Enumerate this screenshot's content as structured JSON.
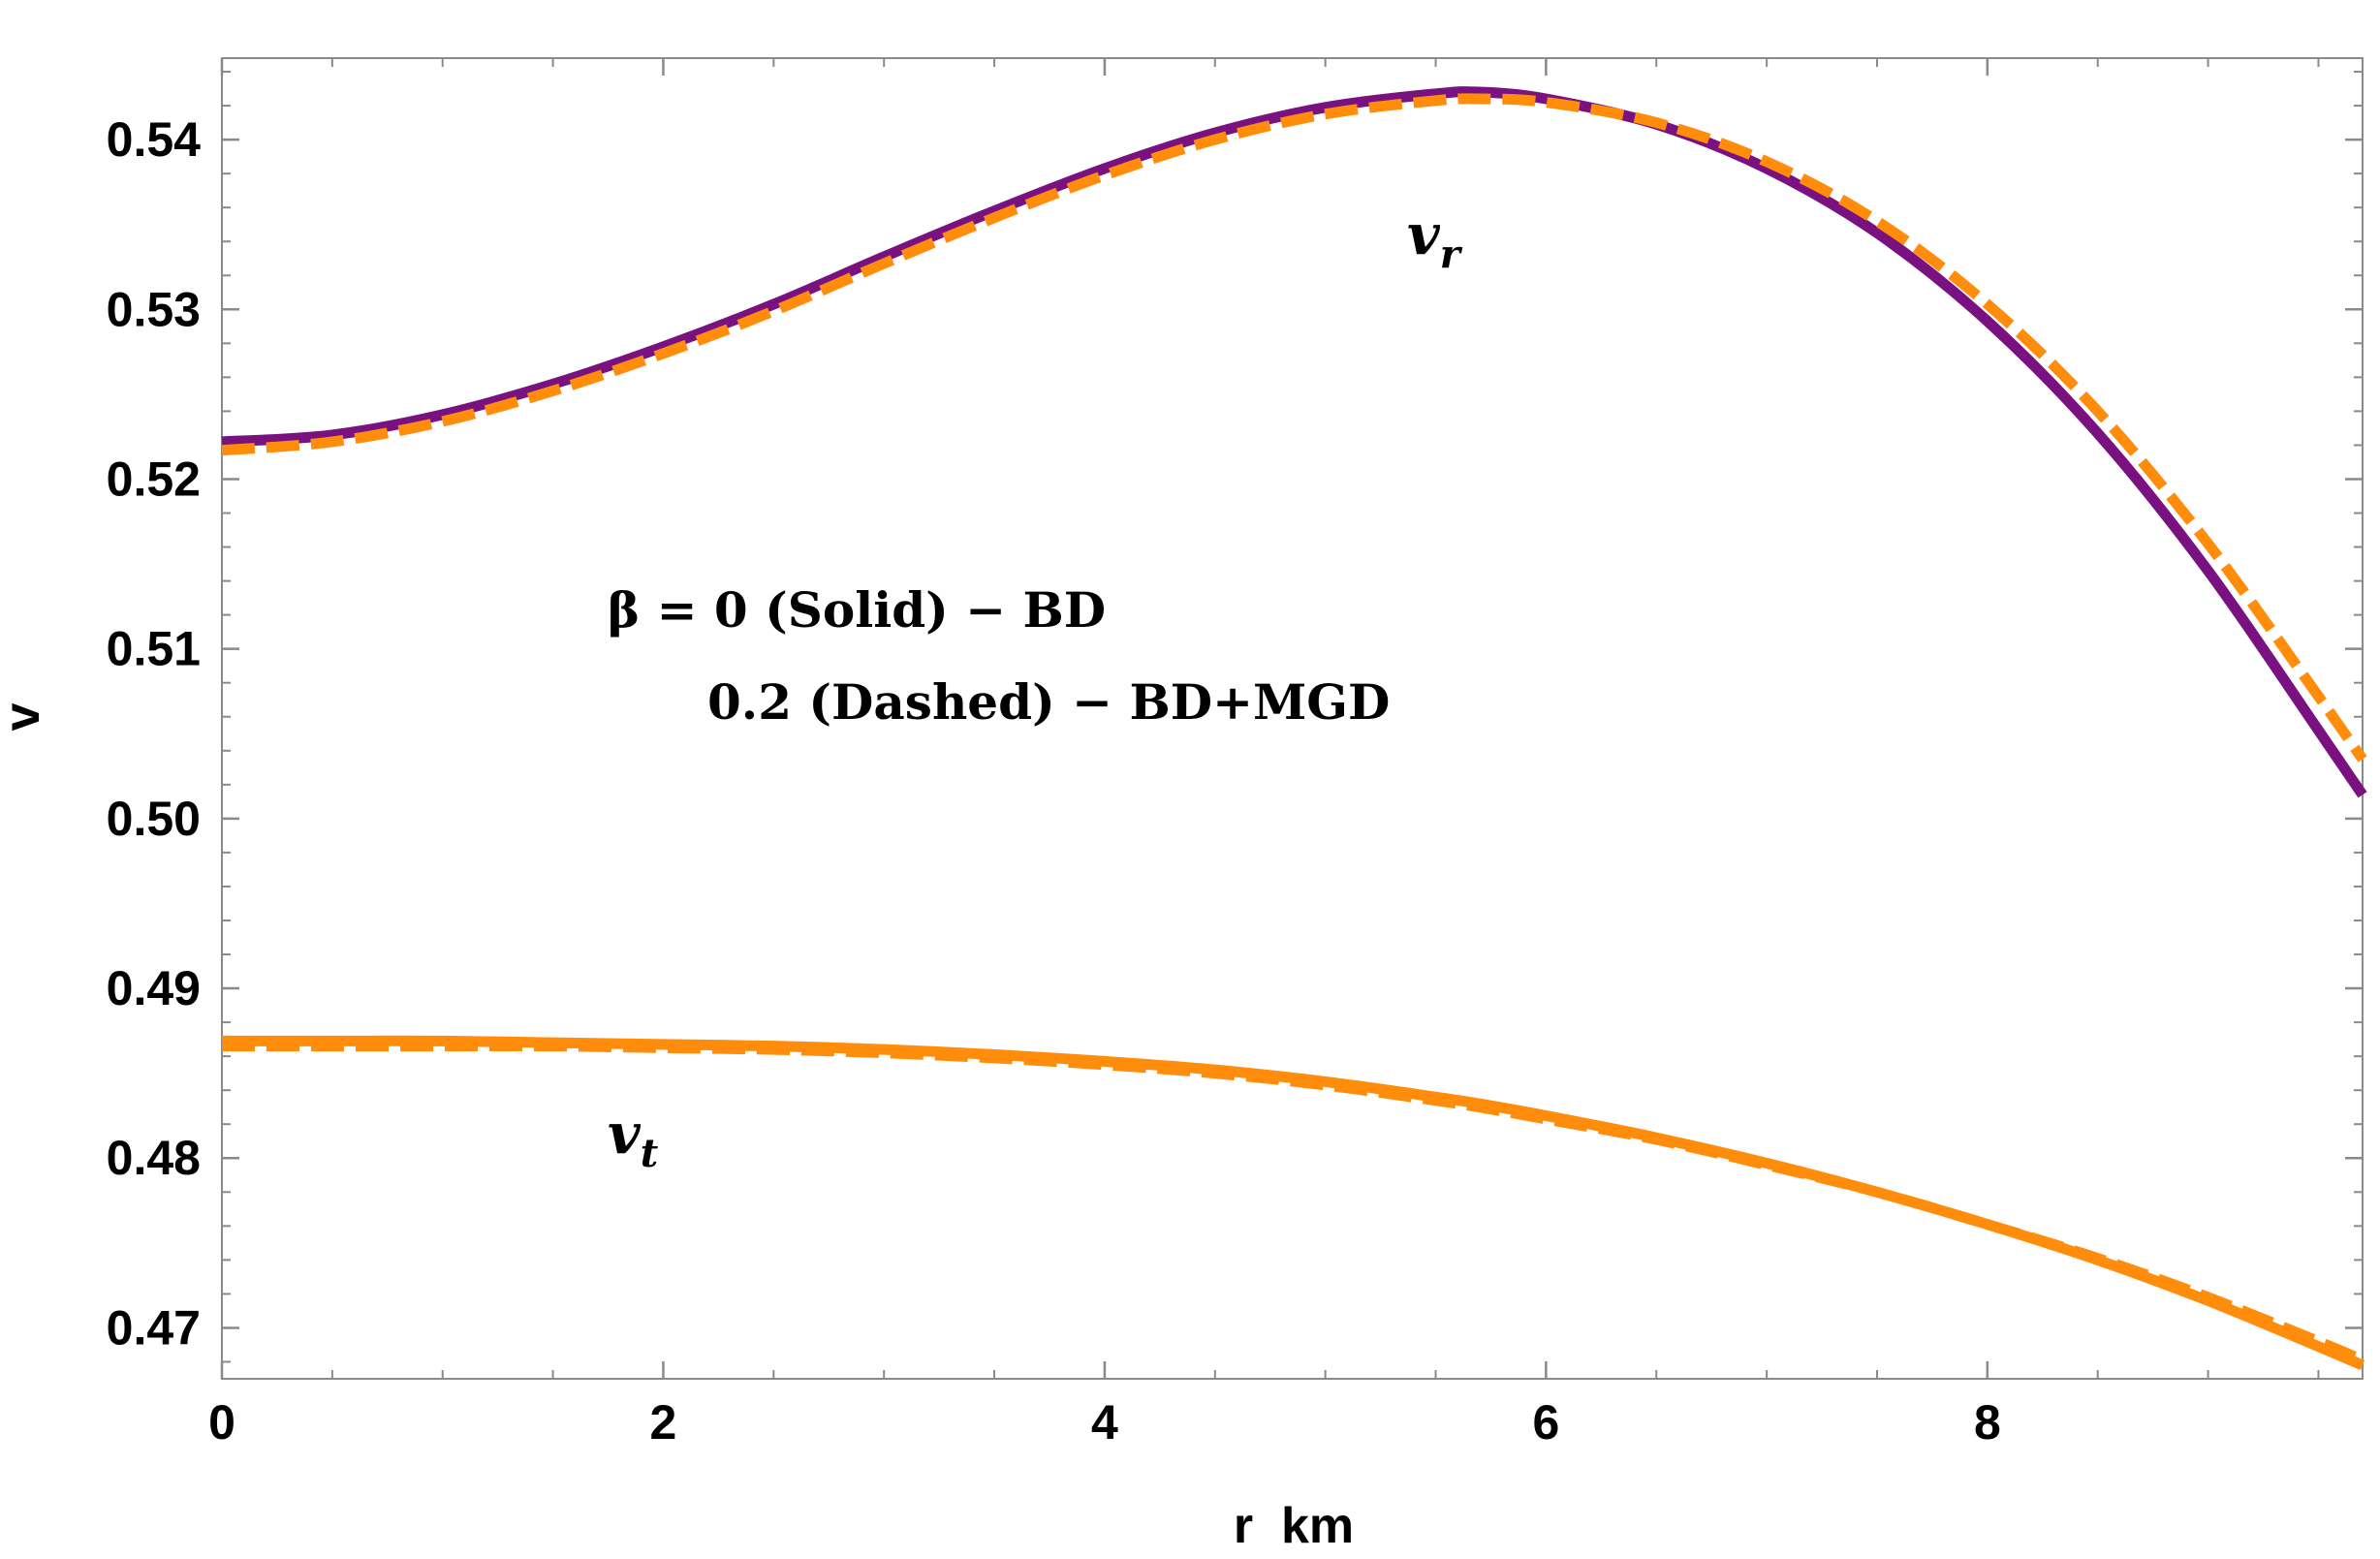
{
  "chart_data": {
    "type": "line",
    "title": "",
    "xlabel": "r  km",
    "ylabel": "v",
    "xlim": [
      0,
      9.7
    ],
    "ylim": [
      0.467,
      0.5448
    ],
    "xticks": [
      0,
      2,
      4,
      6,
      8
    ],
    "xtick_labels": [
      "0",
      "2",
      "4",
      "6",
      "8"
    ],
    "yticks": [
      0.47,
      0.48,
      0.49,
      0.5,
      0.51,
      0.52,
      0.53,
      0.54
    ],
    "ytick_labels": [
      "0.47",
      "0.48",
      "0.49",
      "0.50",
      "0.51",
      "0.52",
      "0.53",
      "0.54"
    ],
    "grid": false,
    "annotations": {
      "line1": "β = 0 (Solid) − BD",
      "line2": "0.2 (Dashed) − BD+MGD",
      "vr_main": "v",
      "vr_sub": "r",
      "vt_main": "v",
      "vt_sub": "t"
    },
    "colors": {
      "purple": "#7a1180",
      "orange": "#ff8c0a"
    },
    "x": [
      0,
      0.5,
      1,
      1.5,
      2,
      2.5,
      3,
      3.5,
      4,
      4.5,
      5,
      5.5,
      5.7,
      6,
      6.5,
      7,
      7.5,
      8,
      8.5,
      9,
      9.5,
      9.7
    ],
    "series": [
      {
        "style": "solid",
        "color": "purple",
        "values": [
          0.5222,
          0.5226,
          0.5238,
          0.5256,
          0.5278,
          0.5303,
          0.5331,
          0.5358,
          0.5383,
          0.5404,
          0.5419,
          0.5427,
          0.5428,
          0.5424,
          0.5409,
          0.5383,
          0.5345,
          0.5293,
          0.5227,
          0.5146,
          0.5052,
          0.5014
        ]
      },
      {
        "style": "dashed",
        "color": "orange",
        "values": [
          0.5217,
          0.5222,
          0.5234,
          0.5252,
          0.5274,
          0.5299,
          0.5327,
          0.5354,
          0.5379,
          0.54,
          0.5415,
          0.5423,
          0.5424,
          0.5422,
          0.541,
          0.5387,
          0.5352,
          0.5303,
          0.524,
          0.5162,
          0.5072,
          0.5035
        ]
      },
      {
        "style": "solid",
        "color": "orange",
        "values": [
          0.4869,
          0.4869,
          0.4869,
          0.4868,
          0.4867,
          0.4866,
          0.4864,
          0.4861,
          0.4857,
          0.4852,
          0.4845,
          0.4836,
          0.4832,
          0.4825,
          0.4812,
          0.4797,
          0.478,
          0.4761,
          0.474,
          0.4716,
          0.4689,
          0.4678
        ]
      },
      {
        "style": "dashed",
        "color": "orange",
        "values": [
          0.4866,
          0.4866,
          0.4866,
          0.4866,
          0.4865,
          0.4864,
          0.4862,
          0.4859,
          0.4855,
          0.485,
          0.4843,
          0.4834,
          0.483,
          0.4823,
          0.4811,
          0.4796,
          0.478,
          0.4761,
          0.4741,
          0.4718,
          0.4692,
          0.4681
        ]
      }
    ]
  }
}
